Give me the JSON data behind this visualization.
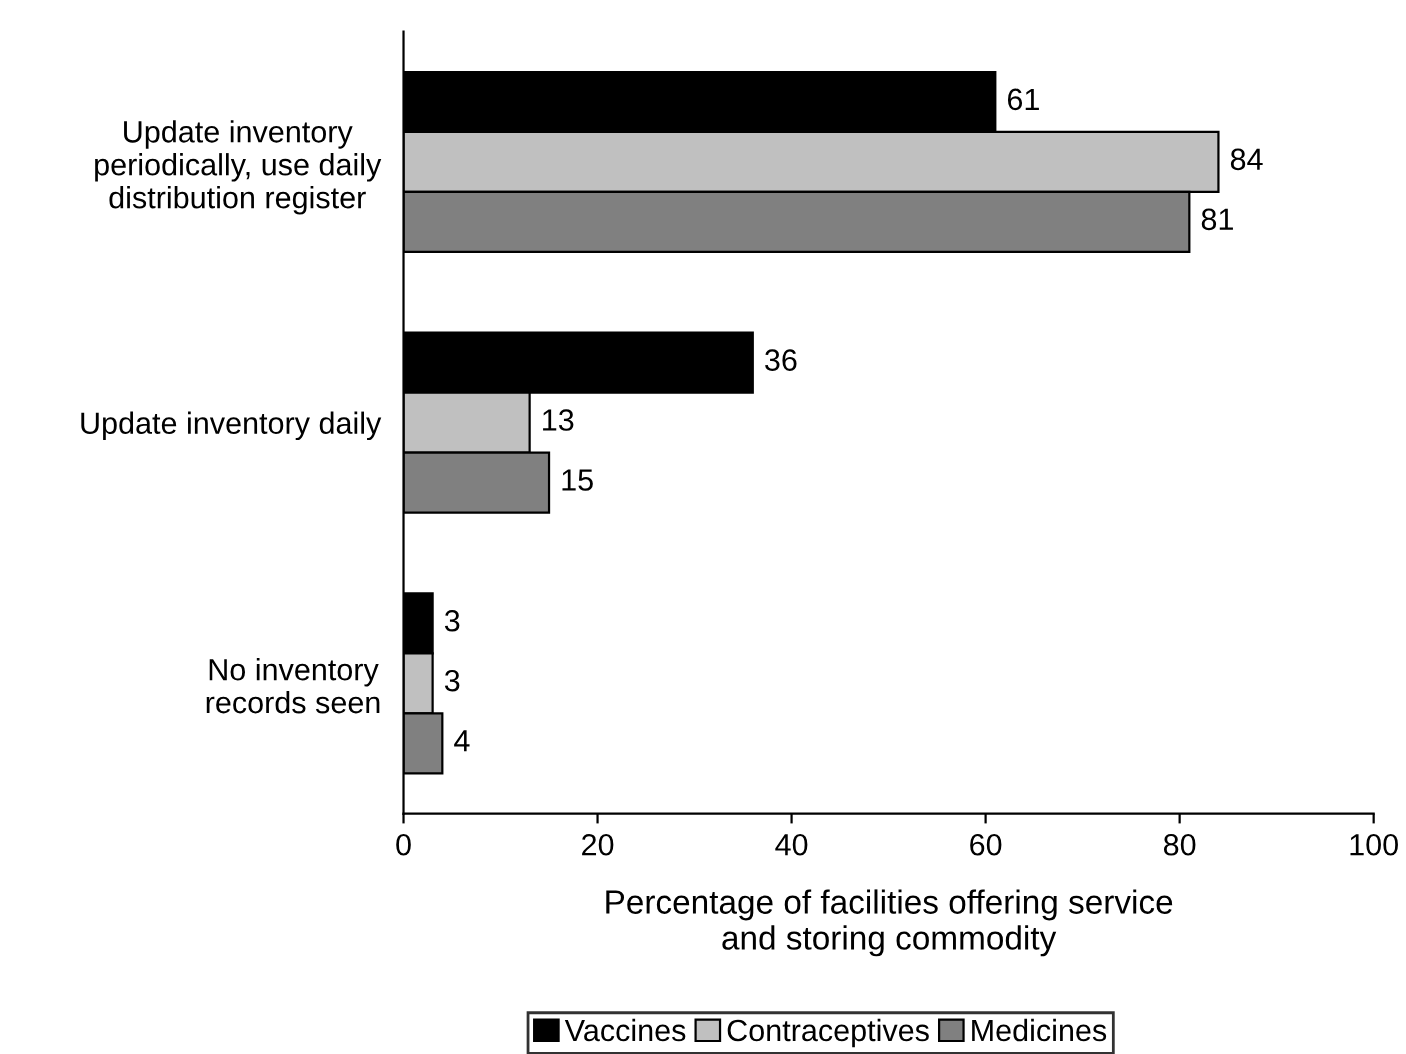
{
  "chart_data": {
    "type": "bar",
    "orientation": "horizontal",
    "categories": [
      "Update inventory\nperiodically, use daily\ndistribution register",
      "Update inventory daily",
      "No inventory\nrecords seen"
    ],
    "series": [
      {
        "name": "Vaccines",
        "color": "#000000",
        "values": [
          61,
          36,
          3
        ]
      },
      {
        "name": "Contraceptives",
        "color": "#c0c0c0",
        "values": [
          84,
          13,
          3
        ]
      },
      {
        "name": "Medicines",
        "color": "#808080",
        "values": [
          81,
          15,
          4
        ]
      }
    ],
    "xlabel": "Percentage of facilities offering service\nand storing commodity",
    "xlim": [
      0,
      100
    ],
    "xticks": [
      0,
      20,
      40,
      60,
      80,
      100
    ],
    "data_labels": true,
    "grid": false,
    "legend": "bottom"
  }
}
